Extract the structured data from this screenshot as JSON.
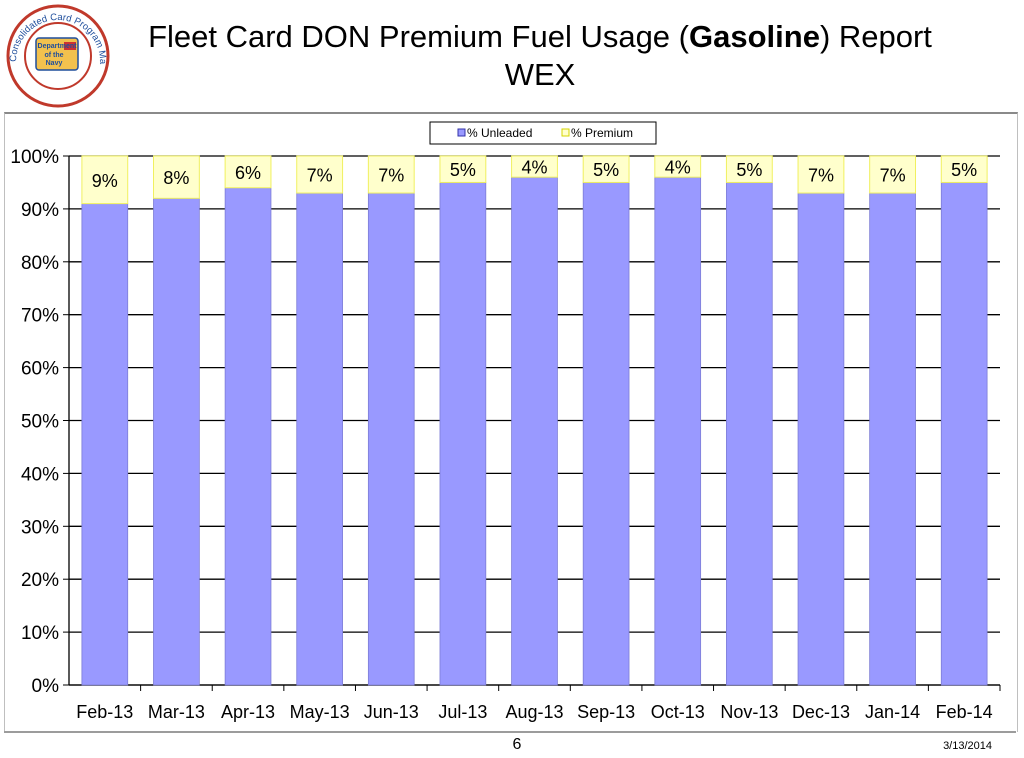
{
  "header": {
    "title_pre": "Fleet Card DON Premium Fuel Usage (",
    "title_bold": "Gasoline",
    "title_post": ") Report",
    "subtitle": "WEX"
  },
  "logo": {
    "ring_text": "Consolidated Card Program Management",
    "center_text": [
      "Department",
      "of the",
      "Navy"
    ]
  },
  "footer": {
    "page_number": "6",
    "date": "3/13/2014"
  },
  "colors": {
    "unleaded": "#9999ff",
    "premium": "#ffffcc",
    "premium_border": "#f0f060",
    "logo_ring": "#c0392b",
    "logo_blue": "#1f4e9c"
  },
  "chart_data": {
    "type": "bar",
    "stacked": true,
    "categories": [
      "Feb-13",
      "Mar-13",
      "Apr-13",
      "May-13",
      "Jun-13",
      "Jul-13",
      "Aug-13",
      "Sep-13",
      "Oct-13",
      "Nov-13",
      "Dec-13",
      "Jan-14",
      "Feb-14"
    ],
    "series": [
      {
        "name": "% Unleaded",
        "values": [
          91,
          92,
          94,
          93,
          93,
          95,
          96,
          95,
          96,
          95,
          93,
          93,
          95
        ]
      },
      {
        "name": "% Premium",
        "values": [
          9,
          8,
          6,
          7,
          7,
          5,
          4,
          5,
          4,
          5,
          7,
          7,
          5
        ]
      }
    ],
    "data_labels": [
      "9%",
      "8%",
      "6%",
      "7%",
      "7%",
      "5%",
      "4%",
      "5%",
      "4%",
      "5%",
      "7%",
      "7%",
      "5%"
    ],
    "yticks": [
      "0%",
      "10%",
      "20%",
      "30%",
      "40%",
      "50%",
      "60%",
      "70%",
      "80%",
      "90%",
      "100%"
    ],
    "ylim": [
      0,
      100
    ],
    "grid": true,
    "legend_position": "top-center"
  }
}
